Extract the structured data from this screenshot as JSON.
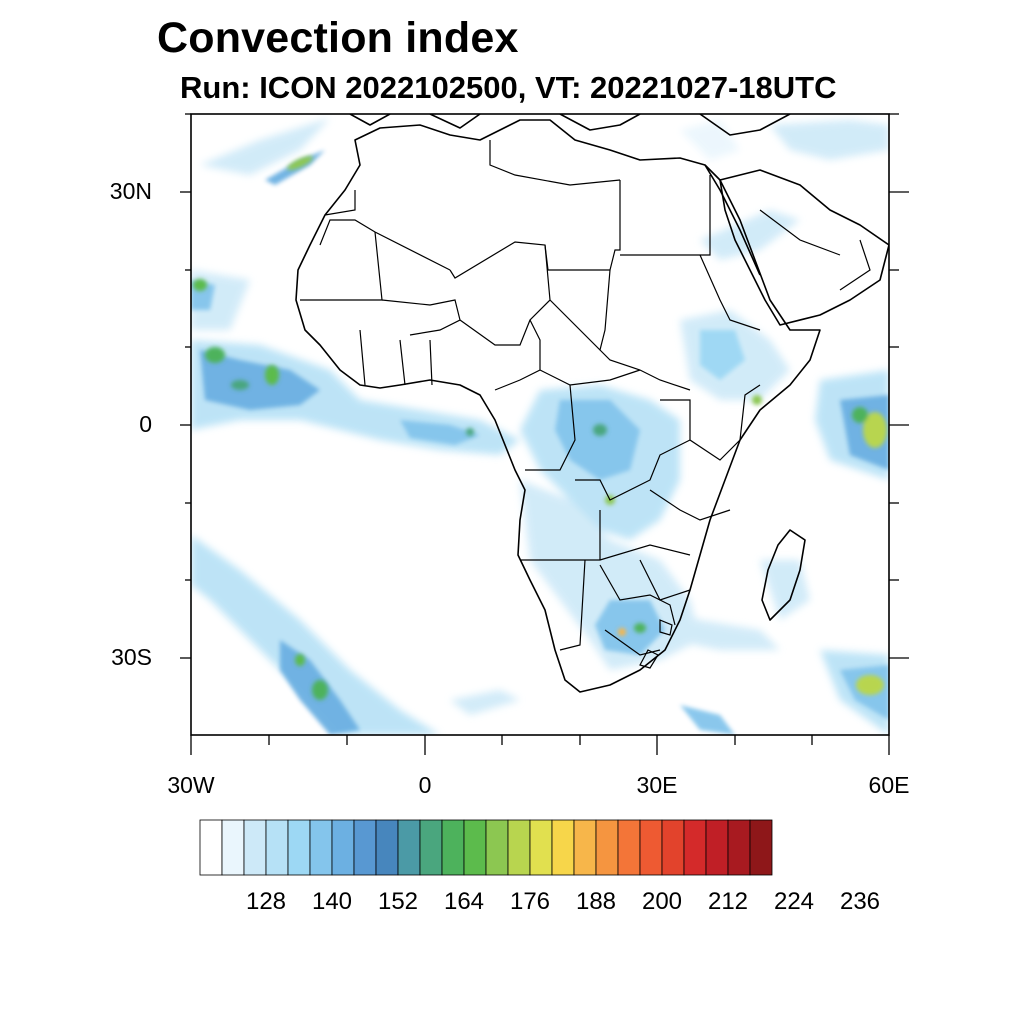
{
  "title": "Convection index",
  "subtitle": "Run: ICON 2022102500,  VT: 20221027-18UTC",
  "lat_labels": [
    "30N",
    "0",
    "30S"
  ],
  "lon_labels": [
    "30W",
    "0",
    "30E",
    "60E"
  ],
  "colorbar": {
    "labels": [
      "128",
      "140",
      "152",
      "164",
      "176",
      "188",
      "200",
      "212",
      "224",
      "236"
    ],
    "colors": [
      "#ffffff",
      "#eaf6fd",
      "#cde9f8",
      "#b6e1f6",
      "#9dd8f4",
      "#84c5ec",
      "#6cb0e2",
      "#5898d2",
      "#4786bd",
      "#4b9aa6",
      "#4aa67e",
      "#4db25c",
      "#5cbb4c",
      "#8cc751",
      "#b8d54f",
      "#e1e04f",
      "#f7d64a",
      "#f7b64a",
      "#f59540",
      "#f37538",
      "#ee5a32",
      "#e2432c",
      "#d42a2a",
      "#c01f26",
      "#a81a20",
      "#8e1719"
    ]
  },
  "map": {
    "lon_range": [
      -30,
      60
    ],
    "lat_range": [
      -40,
      40
    ],
    "land_outline": "Africa",
    "field": "convection index"
  }
}
